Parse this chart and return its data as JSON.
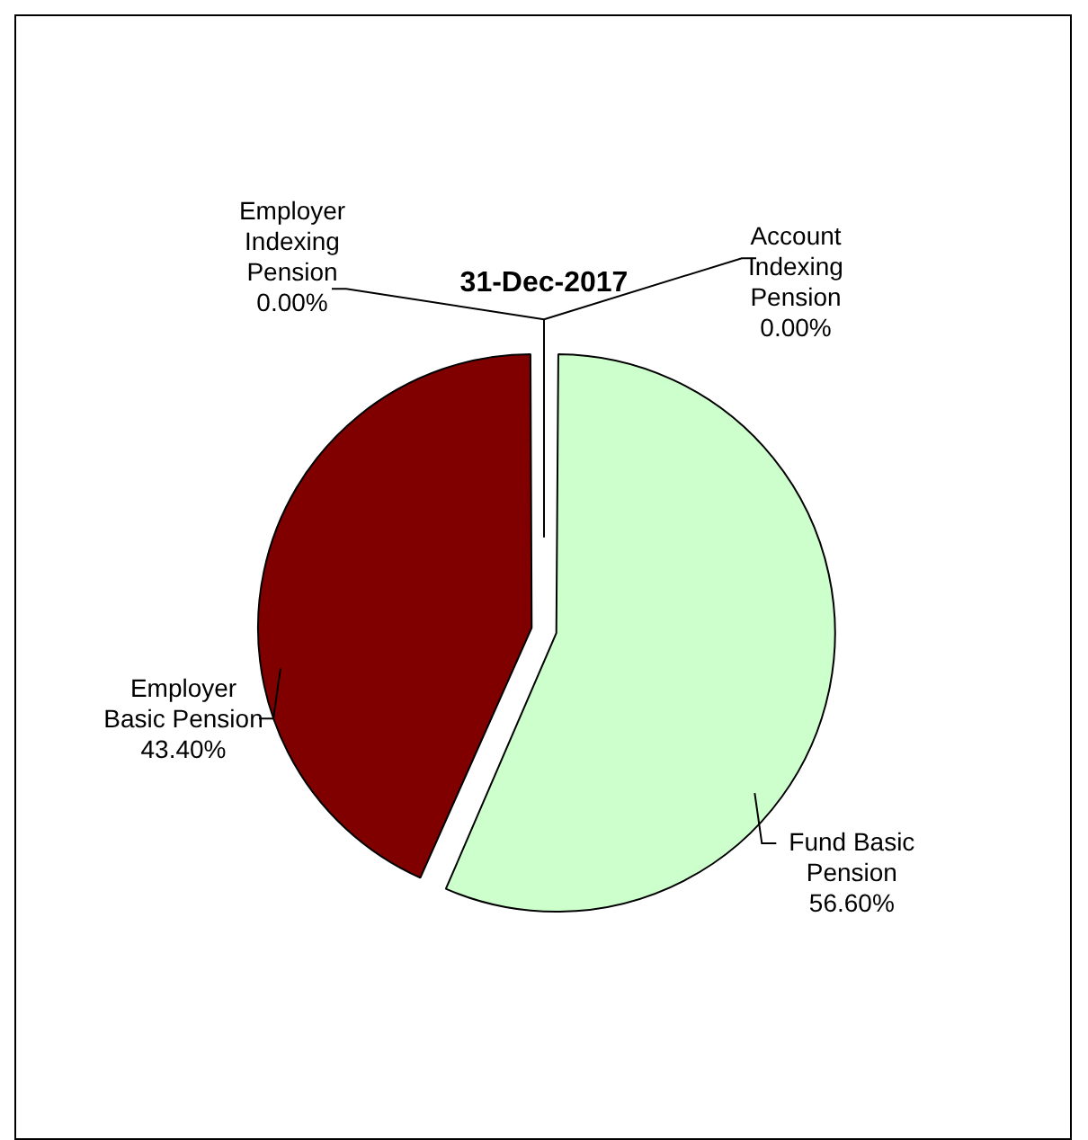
{
  "chart_data": {
    "type": "pie",
    "title": "31-Dec-2017",
    "categories": [
      "Fund Basic Pension",
      "Employer Basic Pension",
      "Employer Indexing Pension",
      "Account Indexing Pension"
    ],
    "values": [
      56.6,
      43.4,
      0,
      0
    ],
    "colors": [
      "#ccffcc",
      "#800000",
      "#000080",
      "#ffff99"
    ],
    "value_labels": [
      "56.60%",
      "43.40%",
      "0.00%",
      "0.00%"
    ],
    "legend": false
  }
}
